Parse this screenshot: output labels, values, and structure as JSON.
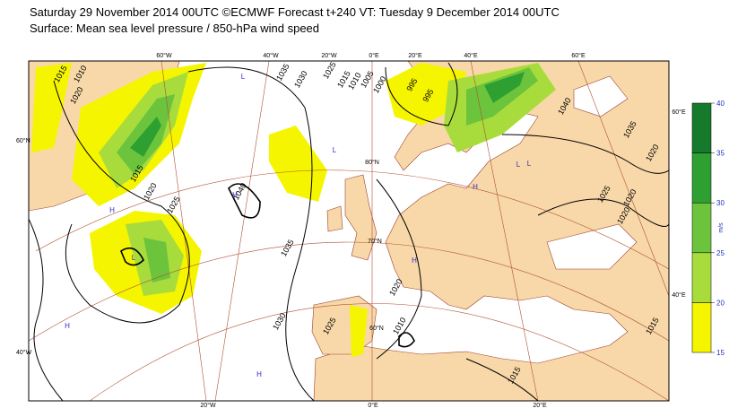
{
  "header": {
    "title": "Saturday 29 November 2014 00UTC ©ECMWF Forecast t+240 VT: Tuesday 9 December 2014 00UTC",
    "subtitle": "Surface: Mean sea level pressure / 850-hPa wind speed"
  },
  "colorbar": {
    "ticks": [
      15,
      20,
      25,
      30,
      35,
      40
    ],
    "colors": [
      "#f5f500",
      "#a8dc3c",
      "#6cc43c",
      "#2ea032",
      "#167a2c"
    ],
    "unit": "m/s"
  },
  "graticule_labels": [
    "60°W",
    "40°W",
    "20°W",
    "0°E",
    "20°E",
    "40°E",
    "60°E",
    "60°N",
    "40°W",
    "20°W",
    "0°E",
    "20°E",
    "60°E",
    "40°E",
    "80°N",
    "70°N",
    "60°N"
  ],
  "isobar_labels": [
    "1015",
    "1010",
    "1020",
    "1035",
    "1030",
    "1025",
    "1015",
    "1010",
    "1005",
    "1000",
    "995",
    "995",
    "1040",
    "1035",
    "1020",
    "1025",
    "1020",
    "1020",
    "1040",
    "1015",
    "1020",
    "1025",
    "1035",
    "1030",
    "1025",
    "1020",
    "1010",
    "1015",
    "1015"
  ],
  "pressure_centres": [
    "H",
    "L",
    "H",
    "L",
    "H",
    "L",
    "L",
    "H",
    "H",
    "H",
    "L"
  ]
}
